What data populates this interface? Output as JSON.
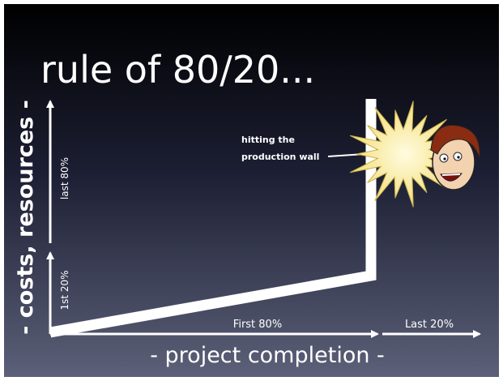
{
  "title": "rule of 80/20...",
  "y_axis_label": "- costs, resources -",
  "x_axis_label": "- project completion -",
  "y_segments": [
    "1st 20%",
    "last 80%"
  ],
  "x_segments": [
    "First 80%",
    "Last 20%"
  ],
  "annotation": [
    "hitting the",
    "production wall"
  ]
}
